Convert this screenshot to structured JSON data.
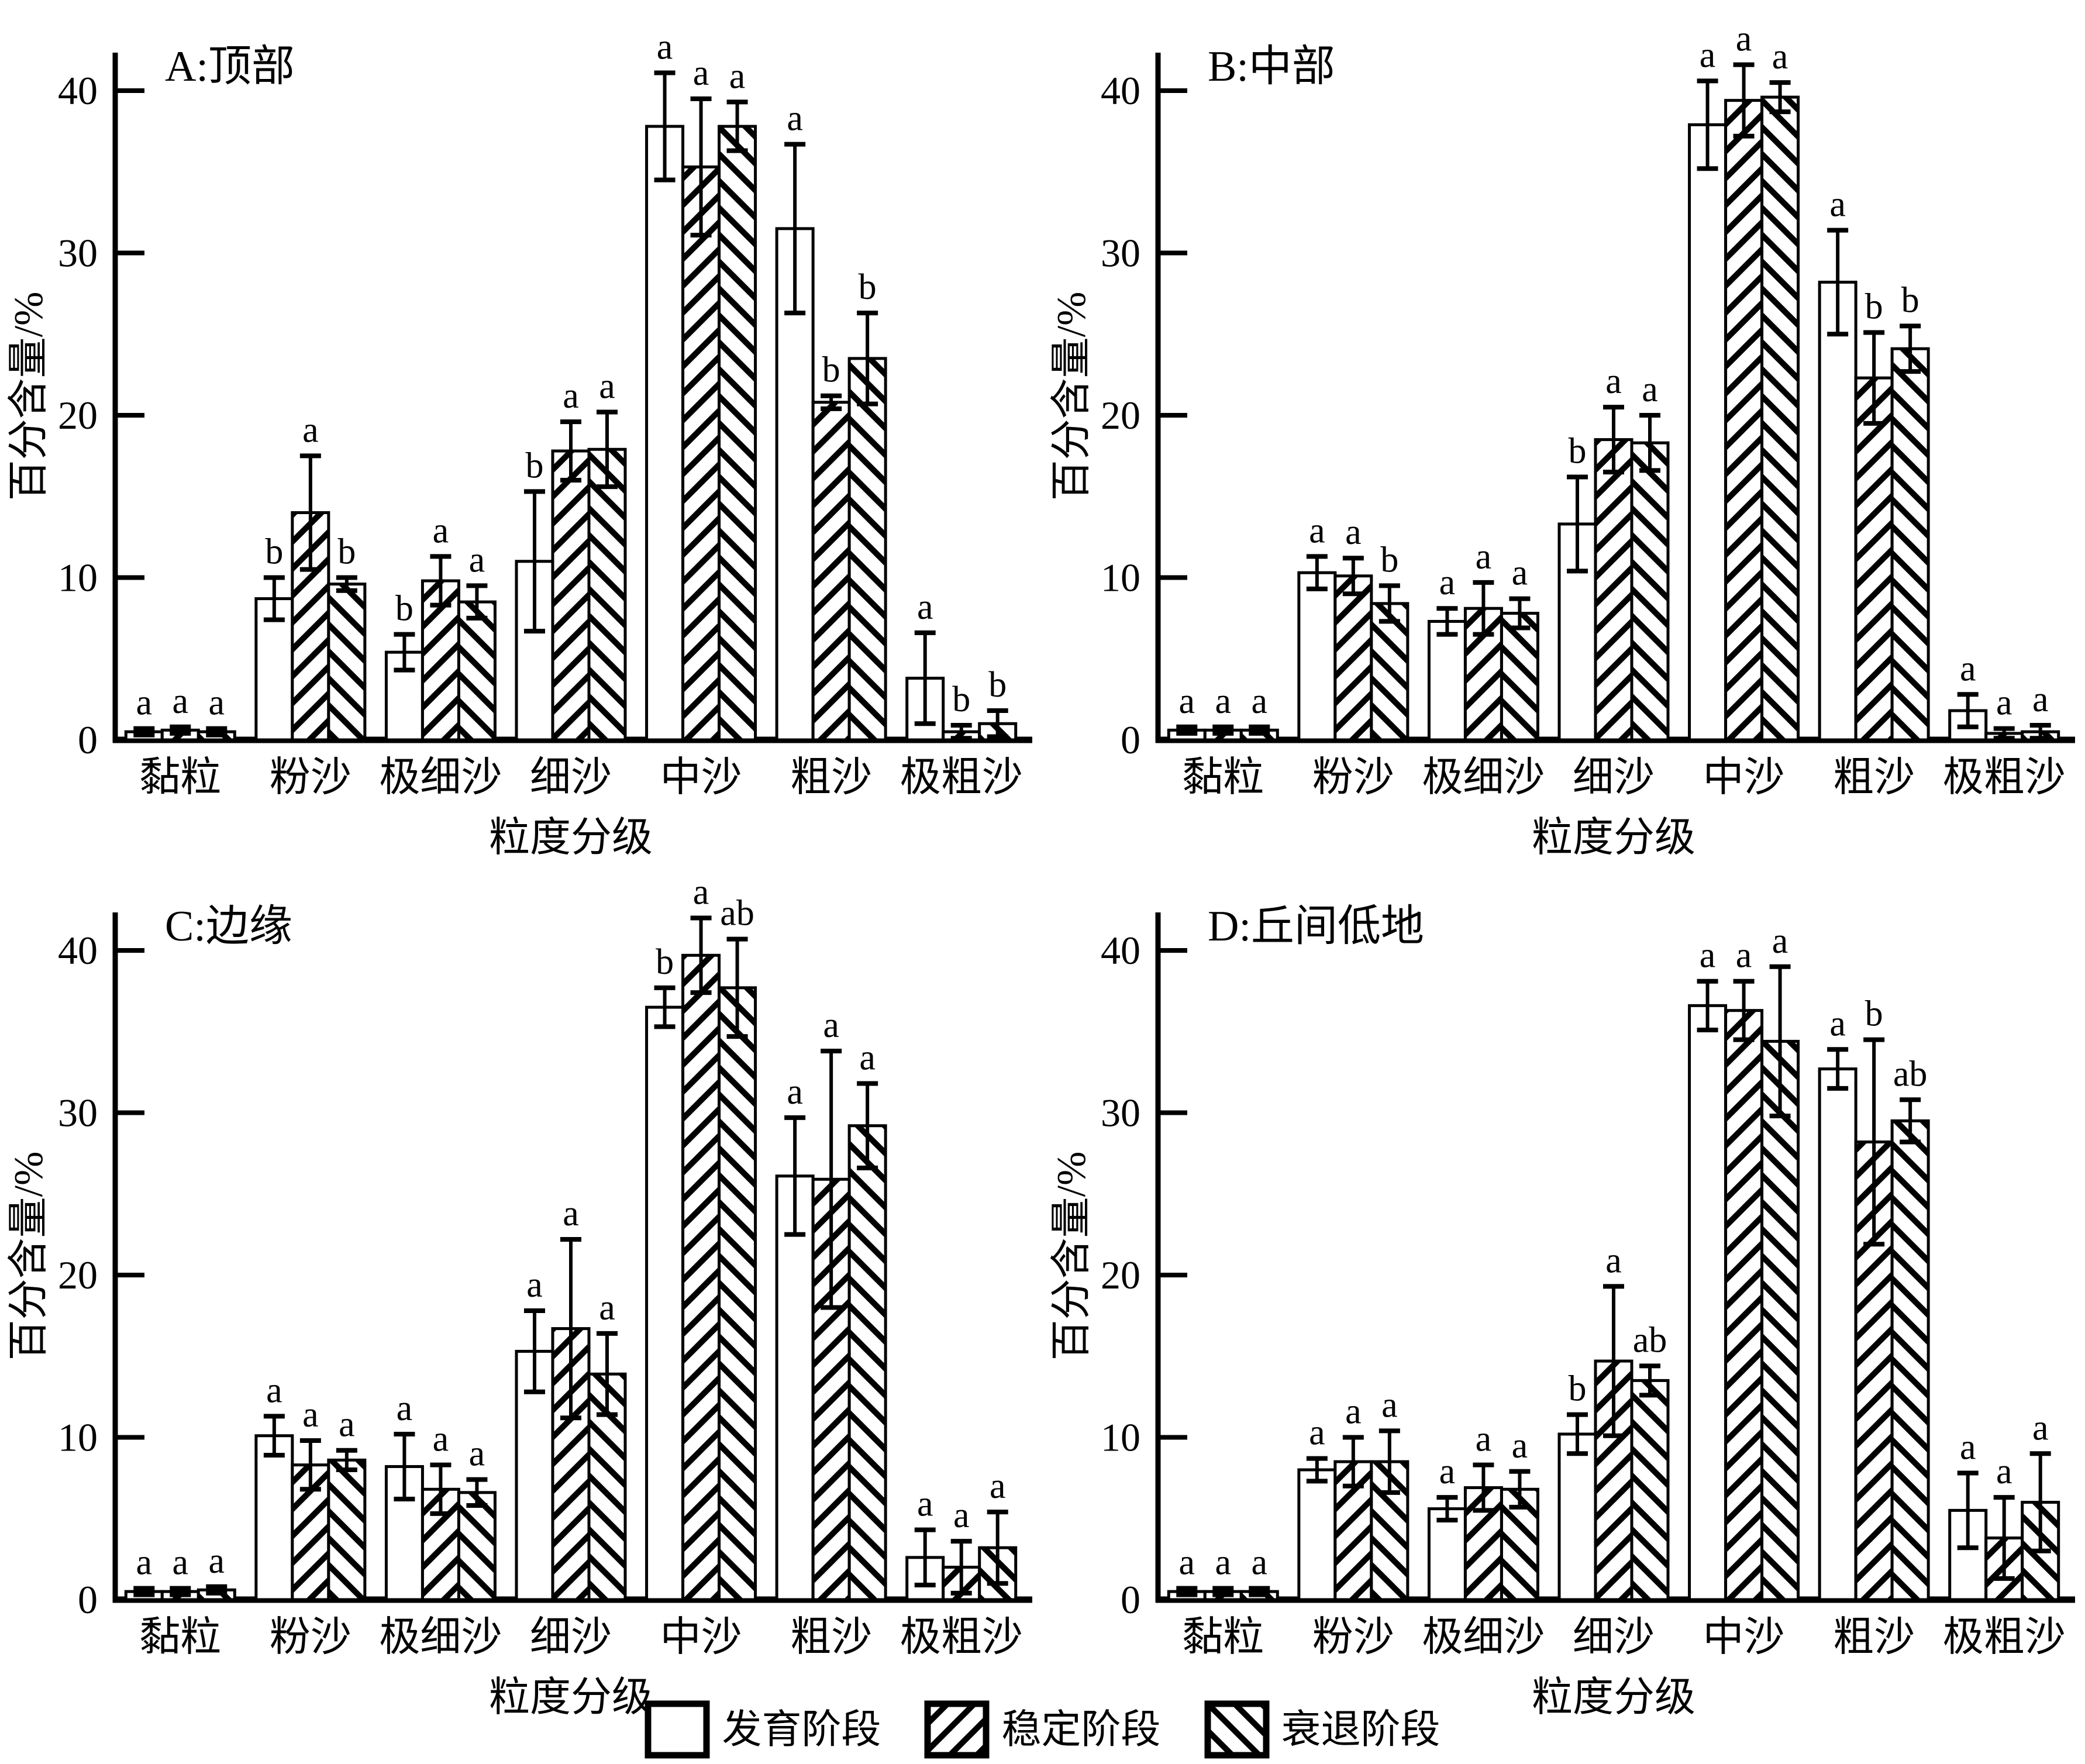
{
  "figure": {
    "background": "#ffffff",
    "foreground": "#000000",
    "ylabel": "百分含量/%",
    "xlabel": "粒度分级",
    "y_ticks": [
      0,
      10,
      20,
      30,
      40
    ],
    "ylim": [
      0,
      42
    ],
    "categories": [
      "黏粒",
      "粉沙",
      "极细沙",
      "细沙",
      "中沙",
      "粗沙",
      "极粗沙"
    ],
    "legend": [
      {
        "label": "发育阶段",
        "pattern": "plain-white"
      },
      {
        "label": "稳定阶段",
        "pattern": "hatch-forward-diagonal"
      },
      {
        "label": "衰退阶段",
        "pattern": "hatch-backward-diagonal"
      }
    ]
  },
  "chart_data": [
    {
      "type": "bar",
      "title": "A:顶部",
      "xlabel": "粒度分级",
      "ylabel": "百分含量/%",
      "ylim": [
        0,
        42
      ],
      "grid": false,
      "legend_position": "bottom",
      "categories": [
        "黏粒",
        "粉沙",
        "极细沙",
        "细沙",
        "中沙",
        "粗沙",
        "极粗沙"
      ],
      "series": [
        {
          "name": "发育阶段",
          "values": [
            0.5,
            8.7,
            5.4,
            11.0,
            37.8,
            31.5,
            3.8
          ],
          "errors": [
            0.2,
            1.3,
            1.1,
            4.3,
            3.3,
            5.2,
            2.8
          ],
          "letters": [
            "a",
            "b",
            "b",
            "b",
            "a",
            "a",
            "a"
          ]
        },
        {
          "name": "稳定阶段",
          "values": [
            0.6,
            14.0,
            9.8,
            17.8,
            35.3,
            20.8,
            0.5
          ],
          "errors": [
            0.2,
            3.5,
            1.5,
            1.8,
            4.2,
            0.4,
            0.4
          ],
          "letters": [
            "a",
            "a",
            "a",
            "a",
            "a",
            "b",
            "b"
          ]
        },
        {
          "name": "衰退阶段",
          "values": [
            0.5,
            9.6,
            8.5,
            17.9,
            37.8,
            23.5,
            1.0
          ],
          "errors": [
            0.2,
            0.4,
            1.0,
            2.3,
            1.5,
            2.8,
            0.8
          ],
          "letters": [
            "a",
            "b",
            "a",
            "a",
            "a",
            "b",
            "b"
          ]
        }
      ]
    },
    {
      "type": "bar",
      "title": "B:中部",
      "xlabel": "粒度分级",
      "ylabel": "百分含量/%",
      "ylim": [
        0,
        42
      ],
      "grid": false,
      "legend_position": "bottom",
      "categories": [
        "黏粒",
        "粉沙",
        "极细沙",
        "细沙",
        "中沙",
        "粗沙",
        "极粗沙"
      ],
      "series": [
        {
          "name": "发育阶段",
          "values": [
            0.6,
            10.3,
            7.3,
            13.3,
            37.9,
            28.2,
            1.8
          ],
          "errors": [
            0.2,
            1.0,
            0.8,
            2.9,
            2.7,
            3.2,
            1.0
          ],
          "letters": [
            "a",
            "a",
            "a",
            "b",
            "a",
            "a",
            "a"
          ]
        },
        {
          "name": "稳定阶段",
          "values": [
            0.6,
            10.1,
            8.1,
            18.5,
            39.4,
            22.3,
            0.4
          ],
          "errors": [
            0.2,
            1.1,
            1.6,
            2.0,
            2.2,
            2.8,
            0.3
          ],
          "letters": [
            "a",
            "a",
            "a",
            "a",
            "a",
            "b",
            "a"
          ]
        },
        {
          "name": "衰退阶段",
          "values": [
            0.6,
            8.4,
            7.8,
            18.3,
            39.6,
            24.1,
            0.5
          ],
          "errors": [
            0.2,
            1.1,
            0.9,
            1.7,
            0.9,
            1.4,
            0.4
          ],
          "letters": [
            "a",
            "b",
            "a",
            "a",
            "a",
            "b",
            "a"
          ]
        }
      ]
    },
    {
      "type": "bar",
      "title": "C:边缘",
      "xlabel": "粒度分级",
      "ylabel": "百分含量/%",
      "ylim": [
        0,
        42
      ],
      "grid": false,
      "legend_position": "bottom",
      "categories": [
        "黏粒",
        "粉沙",
        "极细沙",
        "细沙",
        "中沙",
        "粗沙",
        "极粗沙"
      ],
      "series": [
        {
          "name": "发育阶段",
          "values": [
            0.5,
            10.1,
            8.2,
            15.3,
            36.5,
            26.1,
            2.6
          ],
          "errors": [
            0.2,
            1.2,
            2.0,
            2.5,
            1.2,
            3.6,
            1.7
          ],
          "letters": [
            "a",
            "a",
            "a",
            "a",
            "b",
            "a",
            "a"
          ]
        },
        {
          "name": "稳定阶段",
          "values": [
            0.5,
            8.3,
            6.8,
            16.7,
            39.7,
            25.9,
            2.0
          ],
          "errors": [
            0.2,
            1.5,
            1.5,
            5.5,
            2.3,
            7.9,
            1.6
          ],
          "letters": [
            "a",
            "a",
            "a",
            "a",
            "a",
            "a",
            "a"
          ]
        },
        {
          "name": "衰退阶段",
          "values": [
            0.6,
            8.6,
            6.6,
            13.9,
            37.7,
            29.2,
            3.2
          ],
          "errors": [
            0.2,
            0.6,
            0.8,
            2.5,
            3.0,
            2.6,
            2.2
          ],
          "letters": [
            "a",
            "a",
            "a",
            "a",
            "ab",
            "a",
            "a"
          ]
        }
      ]
    },
    {
      "type": "bar",
      "title": "D:丘间低地",
      "xlabel": "粒度分级",
      "ylabel": "百分含量/%",
      "ylim": [
        0,
        42
      ],
      "grid": false,
      "legend_position": "bottom",
      "categories": [
        "黏粒",
        "粉沙",
        "极细沙",
        "细沙",
        "中沙",
        "粗沙",
        "极粗沙"
      ],
      "series": [
        {
          "name": "发育阶段",
          "values": [
            0.5,
            8.0,
            5.6,
            10.2,
            36.6,
            32.7,
            5.5
          ],
          "errors": [
            0.2,
            0.7,
            0.7,
            1.2,
            1.5,
            1.2,
            2.3
          ],
          "letters": [
            "a",
            "a",
            "a",
            "b",
            "a",
            "a",
            "a"
          ]
        },
        {
          "name": "稳定阶段",
          "values": [
            0.5,
            8.5,
            6.9,
            14.7,
            36.3,
            28.2,
            3.8
          ],
          "errors": [
            0.2,
            1.5,
            1.4,
            4.6,
            1.8,
            6.3,
            2.5
          ],
          "letters": [
            "a",
            "a",
            "a",
            "a",
            "a",
            "b",
            "a"
          ]
        },
        {
          "name": "衰退阶段",
          "values": [
            0.5,
            8.5,
            6.8,
            13.5,
            34.4,
            29.5,
            6.0
          ],
          "errors": [
            0.2,
            1.9,
            1.1,
            0.9,
            4.6,
            1.3,
            3.0
          ],
          "letters": [
            "a",
            "a",
            "a",
            "ab",
            "a",
            "ab",
            "a"
          ]
        }
      ]
    }
  ]
}
